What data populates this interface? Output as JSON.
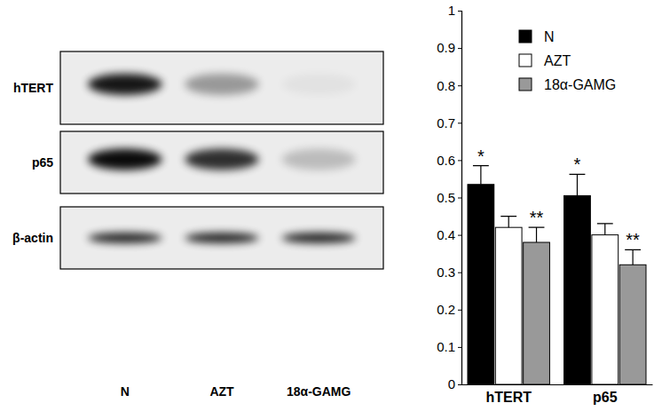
{
  "chart_data": {
    "type": "bar",
    "categories": [
      "hTERT",
      "p65"
    ],
    "series": [
      {
        "name": "N",
        "color": "#000000",
        "values": [
          0.535,
          0.505
        ],
        "errors": [
          0.05,
          0.057
        ]
      },
      {
        "name": "AZT",
        "color": "#ffffff",
        "values": [
          0.42,
          0.4
        ],
        "errors": [
          0.03,
          0.03
        ]
      },
      {
        "name": "18α-GAMG",
        "color": "#999999",
        "values": [
          0.38,
          0.32
        ],
        "errors": [
          0.04,
          0.04
        ]
      }
    ],
    "ylim": [
      0,
      1
    ],
    "yticks": [
      0,
      0.1,
      0.2,
      0.3,
      0.4,
      0.5,
      0.6,
      0.7,
      0.8,
      0.9,
      1
    ],
    "grid": false,
    "legend": "upper right",
    "annotations": [
      {
        "text": "*",
        "category": "hTERT",
        "series": "N"
      },
      {
        "text": "**",
        "category": "hTERT",
        "series": "18α-GAMG"
      },
      {
        "text": "*",
        "category": "p65",
        "series": "N"
      },
      {
        "text": "**",
        "category": "p65",
        "series": "18α-GAMG"
      }
    ]
  },
  "blot": {
    "rows": [
      "hTERT",
      "p65",
      "β-actin"
    ],
    "lanes": [
      "N",
      "AZT",
      "18α-GAMG"
    ],
    "bands": [
      [
        0.9,
        0.35,
        0.04
      ],
      [
        0.95,
        0.8,
        0.2
      ],
      [
        0.85,
        0.85,
        0.85
      ]
    ]
  }
}
